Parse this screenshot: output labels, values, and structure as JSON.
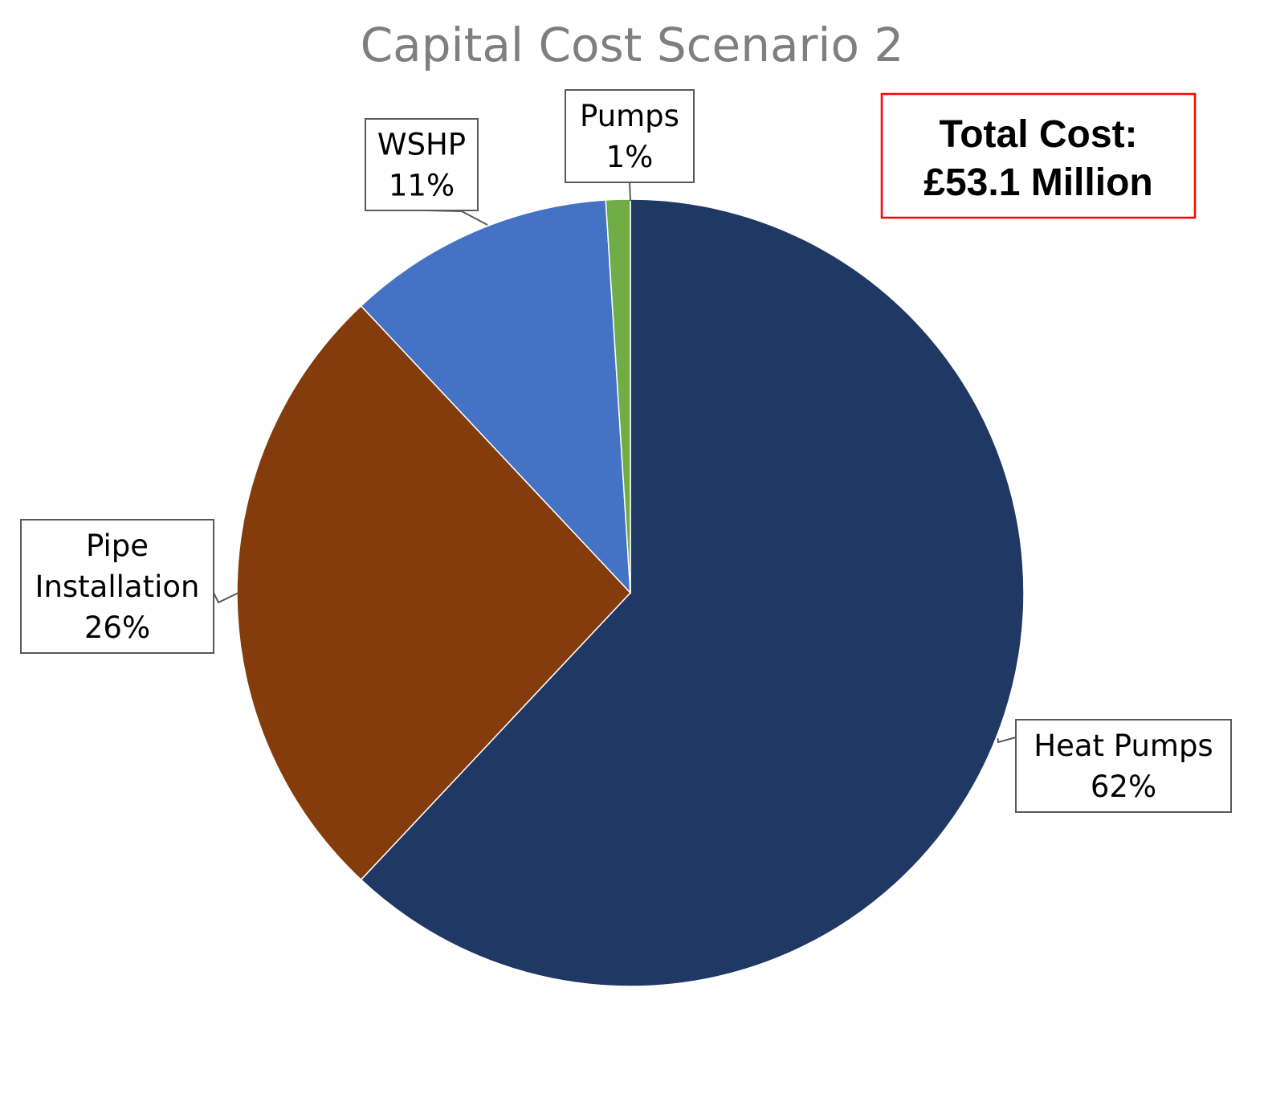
{
  "chart_data": {
    "type": "pie",
    "title": "Capital Cost Scenario 2",
    "slices": [
      {
        "name": "Heat Pumps",
        "label_lines": [
          "Heat Pumps",
          "62%"
        ],
        "value": 62,
        "color": "#203864"
      },
      {
        "name": "Pipe Installation",
        "label_lines": [
          "Pipe",
          "Installation",
          "26%"
        ],
        "value": 26,
        "color": "#843C0C"
      },
      {
        "name": "WSHP",
        "label_lines": [
          "WSHP",
          "11%"
        ],
        "value": 11,
        "color": "#4472C4"
      },
      {
        "name": "Pumps",
        "label_lines": [
          "Pumps",
          "1%"
        ],
        "value": 1,
        "color": "#70AD47"
      }
    ],
    "start_angle_deg": 0,
    "direction": "clockwise",
    "legend": "none",
    "data_labels": "callouts"
  },
  "total_box": {
    "lines": [
      "Total Cost:",
      "£53.1 Million"
    ],
    "border_color": "#FF0000"
  }
}
